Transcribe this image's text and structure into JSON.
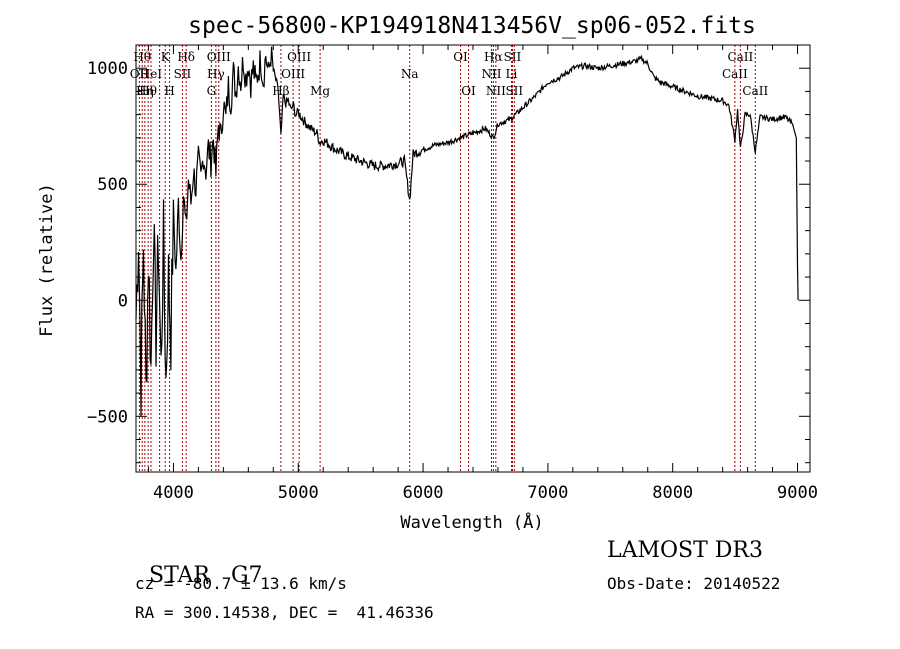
{
  "chart_data": {
    "type": "line",
    "title": "spec-56800-KP194918N413456V_sp06-052.fits",
    "xlabel": "Wavelength (Å)",
    "ylabel": "Flux (relative)",
    "xlim": [
      3700,
      9100
    ],
    "ylim": [
      -740,
      1100
    ],
    "x_ticks": [
      4000,
      5000,
      6000,
      7000,
      8000,
      9000
    ],
    "y_ticks": [
      -500,
      0,
      500,
      1000
    ],
    "grid": false,
    "series": [
      {
        "values": [
          [
            3700,
            -80
          ],
          [
            3720,
            300
          ],
          [
            3740,
            -350
          ],
          [
            3760,
            250
          ],
          [
            3780,
            -400
          ],
          [
            3800,
            200
          ],
          [
            3820,
            -300
          ],
          [
            3840,
            330
          ],
          [
            3860,
            -150
          ],
          [
            3880,
            250
          ],
          [
            3900,
            -300
          ],
          [
            3920,
            260
          ],
          [
            3940,
            -350
          ],
          [
            3960,
            100
          ],
          [
            3980,
            -150
          ],
          [
            4000,
            380
          ],
          [
            4020,
            120
          ],
          [
            4040,
            420
          ],
          [
            4060,
            180
          ],
          [
            4080,
            460
          ],
          [
            4100,
            300
          ],
          [
            4120,
            520
          ],
          [
            4140,
            420
          ],
          [
            4160,
            560
          ],
          [
            4180,
            480
          ],
          [
            4200,
            600
          ],
          [
            4220,
            520
          ],
          [
            4240,
            630
          ],
          [
            4260,
            560
          ],
          [
            4280,
            660
          ],
          [
            4300,
            600
          ],
          [
            4320,
            700
          ],
          [
            4340,
            540
          ],
          [
            4360,
            760
          ],
          [
            4380,
            700
          ],
          [
            4400,
            850
          ],
          [
            4420,
            780
          ],
          [
            4440,
            920
          ],
          [
            4460,
            860
          ],
          [
            4480,
            980
          ],
          [
            4500,
            900
          ],
          [
            4520,
            1010
          ],
          [
            4540,
            940
          ],
          [
            4560,
            1040
          ],
          [
            4580,
            960
          ],
          [
            4600,
            1020
          ],
          [
            4620,
            940
          ],
          [
            4640,
            1000
          ],
          [
            4660,
            930
          ],
          [
            4680,
            990
          ],
          [
            4700,
            1040
          ],
          [
            4720,
            950
          ],
          [
            4740,
            1060
          ],
          [
            4760,
            970
          ],
          [
            4780,
            1060
          ],
          [
            4800,
            990
          ],
          [
            4820,
            950
          ],
          [
            4840,
            900
          ],
          [
            4861,
            700
          ],
          [
            4880,
            880
          ],
          [
            4900,
            850
          ],
          [
            4920,
            860
          ],
          [
            4940,
            820
          ],
          [
            4960,
            840
          ],
          [
            4980,
            800
          ],
          [
            5000,
            810
          ],
          [
            5050,
            770
          ],
          [
            5100,
            740
          ],
          [
            5150,
            720
          ],
          [
            5172,
            680
          ],
          [
            5200,
            690
          ],
          [
            5300,
            650
          ],
          [
            5400,
            620
          ],
          [
            5500,
            600
          ],
          [
            5600,
            580
          ],
          [
            5700,
            580
          ],
          [
            5800,
            590
          ],
          [
            5850,
            600
          ],
          [
            5893,
            430
          ],
          [
            5920,
            630
          ],
          [
            6000,
            650
          ],
          [
            6100,
            670
          ],
          [
            6200,
            680
          ],
          [
            6300,
            700
          ],
          [
            6400,
            720
          ],
          [
            6500,
            740
          ],
          [
            6563,
            700
          ],
          [
            6600,
            760
          ],
          [
            6700,
            780
          ],
          [
            6800,
            830
          ],
          [
            6900,
            880
          ],
          [
            7000,
            940
          ],
          [
            7100,
            960
          ],
          [
            7200,
            1000
          ],
          [
            7300,
            1010
          ],
          [
            7400,
            1000
          ],
          [
            7500,
            1010
          ],
          [
            7600,
            1020
          ],
          [
            7700,
            1030
          ],
          [
            7750,
            1040
          ],
          [
            7800,
            1020
          ],
          [
            7850,
            960
          ],
          [
            7900,
            940
          ],
          [
            8000,
            920
          ],
          [
            8100,
            900
          ],
          [
            8200,
            880
          ],
          [
            8300,
            870
          ],
          [
            8400,
            860
          ],
          [
            8450,
            840
          ],
          [
            8498,
            690
          ],
          [
            8520,
            820
          ],
          [
            8542,
            650
          ],
          [
            8580,
            800
          ],
          [
            8620,
            800
          ],
          [
            8662,
            640
          ],
          [
            8700,
            790
          ],
          [
            8800,
            780
          ],
          [
            8900,
            790
          ],
          [
            8960,
            760
          ],
          [
            8990,
            700
          ],
          [
            9000,
            150
          ],
          [
            9005,
            0
          ]
        ]
      }
    ],
    "lines": [
      {
        "wl": 3727,
        "label": "OII",
        "row": 2
      },
      {
        "wl": 3750,
        "label": "Hθ",
        "row": 1
      },
      {
        "wl": 3771,
        "label": "Hη",
        "row": 3
      },
      {
        "wl": 3797,
        "label": "Hθ",
        "row": 4
      },
      {
        "wl": 3820,
        "label": "HeI",
        "row": 5
      },
      {
        "wl": 3889,
        "label": "",
        "row": 0
      },
      {
        "wl": 3934,
        "label": "K",
        "row": 1
      },
      {
        "wl": 3969,
        "label": "H",
        "row": 3
      },
      {
        "wl": 4072,
        "label": "SII",
        "row": 2
      },
      {
        "wl": 4102,
        "label": "Hδ",
        "row": 1
      },
      {
        "wl": 4304,
        "label": "G",
        "row": 3
      },
      {
        "wl": 4340,
        "label": "Hγ",
        "row": 2
      },
      {
        "wl": 4363,
        "label": "OIII",
        "row": 1
      },
      {
        "wl": 4861,
        "label": "Hβ",
        "row": 3
      },
      {
        "wl": 4959,
        "label": "OIII",
        "row": 2
      },
      {
        "wl": 5007,
        "label": "OIII",
        "row": 1
      },
      {
        "wl": 5175,
        "label": "Mg",
        "row": 3
      },
      {
        "wl": 5893,
        "label": "Na",
        "row": 2
      },
      {
        "wl": 6300,
        "label": "OI",
        "row": 1
      },
      {
        "wl": 6364,
        "label": "OI",
        "row": 3
      },
      {
        "wl": 6548,
        "label": "NII",
        "row": 2
      },
      {
        "wl": 6563,
        "label": "Hα",
        "row": 1
      },
      {
        "wl": 6583,
        "label": "NII",
        "row": 3
      },
      {
        "wl": 6708,
        "label": "Li",
        "row": 2
      },
      {
        "wl": 6716,
        "label": "SII",
        "row": 1
      },
      {
        "wl": 6731,
        "label": "SII",
        "row": 3
      },
      {
        "wl": 8498,
        "label": "CaII",
        "row": 2
      },
      {
        "wl": 8542,
        "label": "CaII",
        "row": 1
      },
      {
        "wl": 8662,
        "label": "CaII",
        "row": 3
      }
    ]
  },
  "footer": {
    "class_label": "STAR",
    "subclass": "G7",
    "survey": "LAMOST DR3",
    "cz": "cz = -80.7 ± 13.6 km/s",
    "obs_date": "Obs-Date: 20140522",
    "coords": "RA = 300.14538, DEC =  41.46336"
  }
}
